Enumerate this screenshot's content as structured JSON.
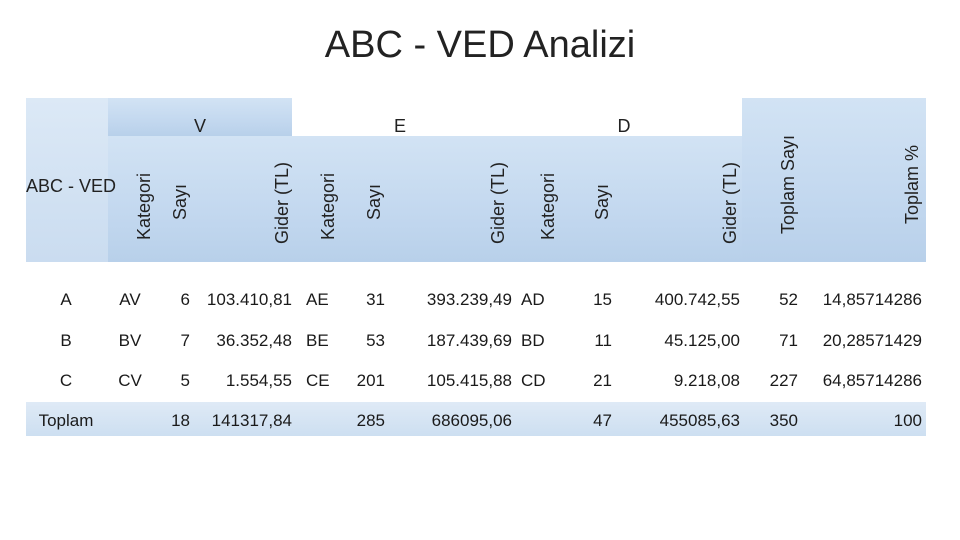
{
  "title": "ABC - VED Analizi",
  "header": {
    "row_label": "ABC - VED",
    "groups": [
      "V",
      "E",
      "D"
    ],
    "sub_columns": [
      "Kategori",
      "Sayı",
      "Gider (TL)"
    ],
    "total_count": "Toplam Sayı",
    "total_pct": "Toplam %"
  },
  "rows": [
    {
      "abc": "A",
      "v_cat": "AV",
      "v_count": "6",
      "v_cost": "103.410,81",
      "e_cat": "AE",
      "e_count": "31",
      "e_cost": "393.239,49",
      "d_cat": "AD",
      "d_count": "15",
      "d_cost": "400.742,55",
      "total": "52",
      "pct": "14,85714286"
    },
    {
      "abc": "B",
      "v_cat": "BV",
      "v_count": "7",
      "v_cost": "36.352,48",
      "e_cat": "BE",
      "e_count": "53",
      "e_cost": "187.439,69",
      "d_cat": "BD",
      "d_count": "11",
      "d_cost": "45.125,00",
      "total": "71",
      "pct": "20,28571429"
    },
    {
      "abc": "C",
      "v_cat": "CV",
      "v_count": "5",
      "v_cost": "1.554,55",
      "e_cat": "CE",
      "e_count": "201",
      "e_cost": "105.415,88",
      "d_cat": "CD",
      "d_count": "21",
      "d_cost": "9.218,08",
      "total": "227",
      "pct": "64,85714286"
    },
    {
      "abc": "Toplam",
      "v_cat": "",
      "v_count": "18",
      "v_cost": "141317,84",
      "e_cat": "",
      "e_count": "285",
      "e_cost": "686095,06",
      "d_cat": "",
      "d_count": "47",
      "d_cost": "455085,63",
      "total": "350",
      "pct": "100"
    }
  ]
}
